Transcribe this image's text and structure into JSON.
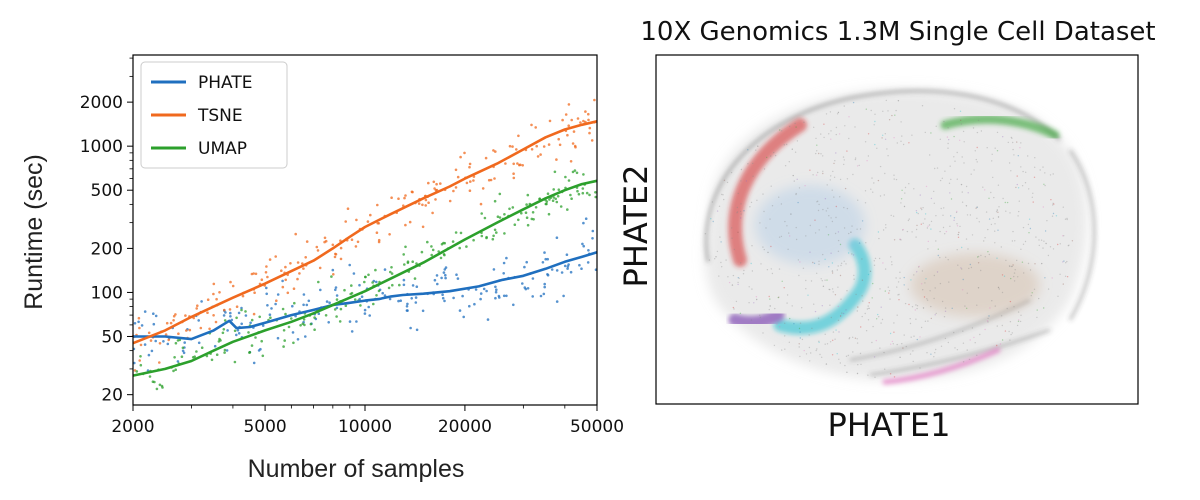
{
  "chart_data": [
    {
      "type": "scatter",
      "xlabel": "Number of samples",
      "ylabel": "Runtime (sec)",
      "xscale": "log",
      "yscale": "log",
      "xlim": [
        2000,
        50000
      ],
      "ylim": [
        17,
        4200
      ],
      "xticks": [
        2000,
        5000,
        10000,
        20000,
        50000
      ],
      "xtick_labels": [
        "2000",
        "5000",
        "10000",
        "20000",
        "50000"
      ],
      "yticks": [
        20,
        50,
        100,
        200,
        500,
        1000,
        2000
      ],
      "ytick_labels": [
        "20",
        "50",
        "100",
        "200",
        "500",
        "1000",
        "2000"
      ],
      "grid": false,
      "legend_position": "top-left",
      "series": [
        {
          "name": "PHATE",
          "color": "#1f6fbf",
          "trend_x": [
            2000,
            2500,
            3000,
            3500,
            3900,
            4100,
            4500,
            5000,
            6000,
            7000,
            8000,
            9000,
            10000,
            11000,
            12000,
            13000,
            15000,
            18000,
            22000,
            26000,
            30000,
            35000,
            40000,
            45000,
            50000
          ],
          "trend_y": [
            50,
            50,
            48,
            55,
            64,
            57,
            58,
            62,
            70,
            76,
            82,
            85,
            88,
            90,
            94,
            96,
            98,
            102,
            110,
            122,
            130,
            145,
            162,
            175,
            188
          ],
          "spread": 0.22
        },
        {
          "name": "TSNE",
          "color": "#f0691e",
          "trend_x": [
            2000,
            2500,
            3000,
            3500,
            4000,
            5000,
            6000,
            7000,
            8000,
            9000,
            10000,
            12000,
            15000,
            18000,
            20000,
            25000,
            30000,
            35000,
            40000,
            45000,
            50000
          ],
          "trend_y": [
            45,
            55,
            68,
            80,
            92,
            115,
            140,
            165,
            200,
            240,
            280,
            345,
            440,
            530,
            600,
            760,
            950,
            1150,
            1300,
            1400,
            1480
          ],
          "spread": 0.18
        },
        {
          "name": "UMAP",
          "color": "#2ca02c",
          "trend_x": [
            2000,
            2500,
            3000,
            3500,
            4000,
            5000,
            6000,
            7000,
            8000,
            9000,
            10000,
            12000,
            15000,
            20000,
            25000,
            30000,
            35000,
            40000,
            45000,
            50000
          ],
          "trend_y": [
            27,
            30,
            34,
            40,
            46,
            55,
            63,
            72,
            82,
            92,
            102,
            125,
            160,
            230,
            300,
            370,
            440,
            500,
            550,
            580
          ],
          "spread": 0.16
        }
      ]
    },
    {
      "type": "scatter",
      "title": "10X Genomics 1.3M Single Cell Dataset",
      "xlabel": "PHATE1",
      "ylabel": "PHATE2",
      "cluster_colors": [
        "#d62728",
        "#2ca02c",
        "#17becf",
        "#9467bd",
        "#e377c2",
        "#8c564b",
        "#1f77b4",
        "#555555"
      ]
    }
  ]
}
